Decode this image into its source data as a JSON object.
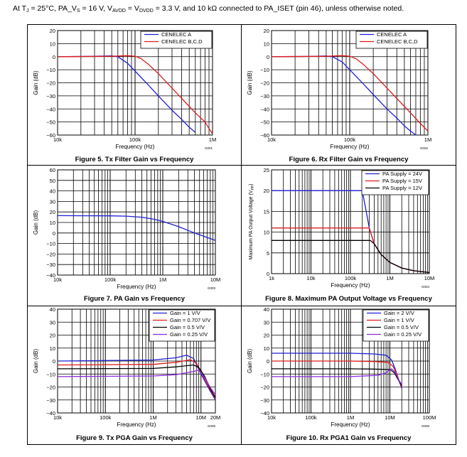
{
  "header": {
    "prefix": "At T",
    "t_sub": "J",
    "part1": " = 25°C, PA_V",
    "vs_sub": "S",
    "part2": " = 16 V, V",
    "avdd_sub": "AVDD",
    "part3": " = V",
    "dvdd_sub": "DVDD",
    "part4": " = 3.3 V, and 10 kΩ connected to PA_ISET (pin 46), unless otherwise noted."
  },
  "chart_data": [
    {
      "id": "fig5",
      "type": "line",
      "caption": "Figure 5. Tx Filter Gain vs Frequency",
      "xlabel": "Frequency (Hz)",
      "ylabel": "Gain (dB)",
      "code": "G001",
      "xscale": "log",
      "xlim": [
        10000,
        1000000
      ],
      "xticks": [
        {
          "v": 10000,
          "label": "10k"
        },
        {
          "v": 100000,
          "label": "100k"
        },
        {
          "v": 1000000,
          "label": "1M"
        }
      ],
      "ylim": [
        -60,
        20
      ],
      "yticks": [
        -60,
        -50,
        -40,
        -30,
        -20,
        -10,
        0,
        10,
        20
      ],
      "legend": "top-right",
      "legend_width": 100,
      "series": [
        {
          "name": "CENELEC A",
          "color": "#1f1fd6",
          "x": [
            10000,
            30000,
            50000,
            60000,
            80000,
            100000,
            150000,
            200000,
            300000,
            400000,
            500000,
            600000
          ],
          "y": [
            0,
            0.3,
            0.6,
            0,
            -5,
            -11,
            -22,
            -30,
            -41,
            -48,
            -54,
            -58
          ]
        },
        {
          "name": "CENELEC B,C,D",
          "color": "#e01c1c",
          "x": [
            10000,
            50000,
            80000,
            100000,
            120000,
            150000,
            200000,
            300000,
            400000,
            600000,
            800000,
            900000,
            1000000
          ],
          "y": [
            0,
            0.3,
            0.8,
            0.3,
            -1.5,
            -6,
            -13,
            -24,
            -32,
            -43,
            -50,
            -55,
            -59
          ]
        }
      ]
    },
    {
      "id": "fig6",
      "type": "line",
      "caption": "Figure 6. Rx Filter Gain vs Frequency",
      "xlabel": "Frequency (Hz)",
      "ylabel": "Gain (dB)",
      "code": "G002",
      "xscale": "log",
      "xlim": [
        10000,
        1000000
      ],
      "xticks": [
        {
          "v": 10000,
          "label": "10k"
        },
        {
          "v": 100000,
          "label": "100k"
        },
        {
          "v": 1000000,
          "label": "1M"
        }
      ],
      "ylim": [
        -60,
        20
      ],
      "yticks": [
        -60,
        -50,
        -40,
        -30,
        -20,
        -10,
        0,
        10,
        20
      ],
      "legend": "top-right",
      "legend_width": 100,
      "series": [
        {
          "name": "CENELEC A",
          "color": "#1f1fd6",
          "x": [
            10000,
            30000,
            50000,
            60000,
            80000,
            100000,
            150000,
            200000,
            300000,
            400000,
            500000,
            600000,
            700000
          ],
          "y": [
            0,
            0.2,
            0.5,
            0,
            -4,
            -10,
            -21,
            -29,
            -40,
            -47,
            -53,
            -57,
            -60
          ]
        },
        {
          "name": "CENELEC B,C,D",
          "color": "#e01c1c",
          "x": [
            10000,
            50000,
            80000,
            100000,
            120000,
            150000,
            200000,
            300000,
            400000,
            600000,
            800000,
            1000000
          ],
          "y": [
            0,
            0.3,
            0.8,
            0.3,
            -1.5,
            -6,
            -13,
            -24,
            -32,
            -43,
            -51,
            -57
          ]
        }
      ]
    },
    {
      "id": "fig7",
      "type": "line",
      "caption": "Figure 7. PA Gain vs Frequency",
      "xlabel": "Frequency (Hz)",
      "ylabel": "Gain (dB)",
      "code": "G003",
      "xscale": "log",
      "xlim": [
        10000,
        10000000
      ],
      "xticks": [
        {
          "v": 10000,
          "label": "10k"
        },
        {
          "v": 100000,
          "label": "100k"
        },
        {
          "v": 1000000,
          "label": "1M"
        },
        {
          "v": 10000000,
          "label": "10M"
        }
      ],
      "ylim": [
        -40,
        60
      ],
      "yticks": [
        -40,
        -30,
        -20,
        -10,
        0,
        10,
        20,
        30,
        40,
        50,
        60
      ],
      "legend": "none",
      "series": [
        {
          "name": "PA",
          "color": "#1f1fd6",
          "x": [
            10000,
            100000,
            200000,
            400000,
            700000,
            1000000,
            2000000,
            4000000,
            10000000
          ],
          "y": [
            16.5,
            16.3,
            16,
            15,
            13,
            11,
            6,
            0,
            -7
          ]
        }
      ]
    },
    {
      "id": "fig8",
      "type": "line",
      "caption": "Figure 8. Maximum PA Output Voltage vs Frequency",
      "xlabel": "Frequency (Hz)",
      "ylabel": "Maximum PA Output Voltage (V",
      "ylabel_sub": "PP",
      "ylabel_end": ")",
      "code": "G004",
      "xscale": "log",
      "xlim": [
        1000,
        10000000
      ],
      "xticks": [
        {
          "v": 1000,
          "label": "1k"
        },
        {
          "v": 10000,
          "label": "10k"
        },
        {
          "v": 100000,
          "label": "100k"
        },
        {
          "v": 1000000,
          "label": "1M"
        },
        {
          "v": 10000000,
          "label": "10M"
        }
      ],
      "ylim": [
        0,
        25
      ],
      "yticks": [
        0,
        5,
        10,
        15,
        20,
        25
      ],
      "legend": "top-right",
      "legend_width": 94,
      "series": [
        {
          "name": "PA Supply = 24V",
          "color": "#1f1fd6",
          "x": [
            1000,
            200000,
            240000,
            300000,
            400000,
            600000,
            1000000,
            2000000,
            4000000,
            10000000
          ],
          "y": [
            20,
            20,
            16,
            11,
            7.2,
            4.6,
            2.7,
            1.35,
            0.7,
            0.28
          ]
        },
        {
          "name": "PA Supply = 15V",
          "color": "#e01c1c",
          "x": [
            1000,
            300000,
            400000,
            600000,
            1000000,
            2000000,
            4000000,
            10000000
          ],
          "y": [
            11,
            11,
            7.2,
            4.6,
            2.7,
            1.35,
            0.7,
            0.28
          ]
        },
        {
          "name": "PA Supply = 12V",
          "color": "#000000",
          "x": [
            1000,
            320000,
            400000,
            600000,
            1000000,
            2000000,
            4000000,
            10000000
          ],
          "y": [
            8,
            8,
            7.2,
            4.6,
            2.7,
            1.35,
            0.7,
            0.28
          ]
        }
      ]
    },
    {
      "id": "fig9",
      "type": "line",
      "caption": "Figure 9. Tx PGA Gain vs Frequency",
      "xlabel": "Frequency (Hz)",
      "ylabel": "Gain (dB)",
      "code": "G005",
      "xscale": "log",
      "xlim": [
        10000,
        20000000
      ],
      "xticks": [
        {
          "v": 10000,
          "label": "10k"
        },
        {
          "v": 100000,
          "label": "100k"
        },
        {
          "v": 1000000,
          "label": "1M"
        },
        {
          "v": 10000000,
          "label": "10M"
        },
        {
          "v": 20000000,
          "label": "20M"
        }
      ],
      "ylim": [
        -40,
        40
      ],
      "yticks": [
        -40,
        -30,
        -20,
        -10,
        0,
        10,
        20,
        30,
        40
      ],
      "legend": "top-right",
      "legend_width": 92,
      "series": [
        {
          "name": "Gain = 1 V/V",
          "color": "#1f1fd6",
          "x": [
            10000,
            1000000,
            3000000,
            5000000,
            7000000,
            10000000,
            15000000,
            20000000
          ],
          "y": [
            0,
            0.8,
            2.5,
            4.5,
            2,
            -10,
            -22,
            -30
          ]
        },
        {
          "name": "Gain = 0.707 V/V",
          "color": "#e01c1c",
          "x": [
            10000,
            1000000,
            3000000,
            6000000,
            8000000,
            10000000,
            15000000,
            20000000
          ],
          "y": [
            -3,
            -2.6,
            -1,
            1,
            -1.5,
            -9,
            -21,
            -29
          ]
        },
        {
          "name": "Gain = 0.5 V/V",
          "color": "#000000",
          "x": [
            10000,
            1000000,
            3000000,
            7000000,
            9000000,
            12000000,
            16000000,
            20000000
          ],
          "y": [
            -6,
            -5.7,
            -4.5,
            -3,
            -5,
            -12,
            -22,
            -28
          ]
        },
        {
          "name": "Gain = 0.25 V/V",
          "color": "#8b2be2",
          "x": [
            10000,
            1000000,
            3000000,
            7000000,
            9000000,
            12000000,
            16000000,
            20000000
          ],
          "y": [
            -12,
            -11.5,
            -10.5,
            -8,
            -7,
            -13,
            -21,
            -26
          ]
        }
      ]
    },
    {
      "id": "fig10",
      "type": "line",
      "caption": "Figure 10. Rx PGA1 Gain vs Frequency",
      "xlabel": "Frequency (Hz)",
      "ylabel": "Gain (dB)",
      "code": "G006",
      "xscale": "log",
      "xlim": [
        10000,
        100000000
      ],
      "xticks": [
        {
          "v": 10000,
          "label": "10k"
        },
        {
          "v": 100000,
          "label": "100k"
        },
        {
          "v": 1000000,
          "label": "1M"
        },
        {
          "v": 10000000,
          "label": "10M"
        },
        {
          "v": 100000000,
          "label": "100M"
        }
      ],
      "ylim": [
        -40,
        40
      ],
      "yticks": [
        -40,
        -30,
        -20,
        -10,
        0,
        10,
        20,
        30,
        40
      ],
      "legend": "top-right",
      "legend_width": 92,
      "series": [
        {
          "name": "Gain = 2 V/V",
          "color": "#1f1fd6",
          "x": [
            10000,
            1000000,
            4000000,
            8000000,
            11000000,
            14000000,
            17000000,
            20000000
          ],
          "y": [
            6,
            6,
            5.5,
            4.5,
            1,
            -7,
            -15,
            -21
          ]
        },
        {
          "name": "Gain = 1 V/V",
          "color": "#e01c1c",
          "x": [
            10000,
            1000000,
            4000000,
            9000000,
            12000000,
            15000000,
            18000000,
            20000000
          ],
          "y": [
            0,
            0,
            -0.4,
            -1,
            -4,
            -10,
            -17,
            -20
          ]
        },
        {
          "name": "Gain = 0.5 V/V",
          "color": "#000000",
          "x": [
            10000,
            1000000,
            4000000,
            10000000,
            13000000,
            16000000,
            20000000
          ],
          "y": [
            -6,
            -6,
            -6.2,
            -6.5,
            -9,
            -14,
            -19
          ]
        },
        {
          "name": "Gain = 0.25 V/V",
          "color": "#8b2be2",
          "x": [
            10000,
            1000000,
            5000000,
            8000000,
            11000000,
            14000000,
            17000000,
            20000000
          ],
          "y": [
            -12,
            -12,
            -11,
            -9,
            -6,
            -9,
            -15,
            -18
          ]
        }
      ]
    }
  ]
}
